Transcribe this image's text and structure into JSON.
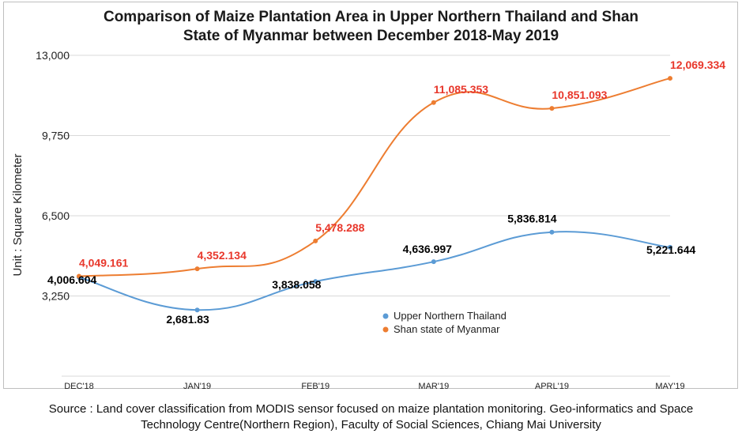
{
  "chart_data": {
    "type": "line",
    "title_lines": [
      "Comparison of Maize Plantation Area in Upper Northern Thailand and Shan",
      "State of Myanmar between December 2018-May 2019"
    ],
    "ylabel": "Unit : Square Kilometer",
    "xlabel": "",
    "categories": [
      "DEC'18",
      "JAN'19",
      "FEB'19",
      "MAR'19",
      "APRL'19",
      "MAY'19"
    ],
    "y_ticks": [
      "3,250",
      "6,500",
      "9,750",
      "13,000"
    ],
    "y_tick_values": [
      3250,
      6500,
      9750,
      13000
    ],
    "ylim": [
      0,
      13000
    ],
    "grid": "horizontal",
    "legend_position": "center-right",
    "series": [
      {
        "name": "Upper Northern Thailand",
        "color": "#5b9bd5",
        "label_color": "#000000",
        "values": [
          4006.604,
          2681.83,
          3838.058,
          4636.997,
          5836.814,
          5221.644
        ],
        "labels": [
          "4,006.604",
          "2,681.83",
          "3,838.058",
          "4,636.997",
          "5,836.814",
          "5,221.644"
        ]
      },
      {
        "name": "Shan state of Myanmar",
        "color": "#ed7d31",
        "label_color": "#e8372b",
        "values": [
          4049.161,
          4352.134,
          5478.288,
          11085.353,
          10851.093,
          12069.334
        ],
        "labels": [
          "4,049.161",
          "4,352.134",
          "5,478.288",
          "11,085.353",
          "10,851.093",
          "12,069.334"
        ]
      }
    ]
  },
  "source_lines": [
    "Source : Land cover classification from MODIS sensor focused on maize plantation monitoring. Geo-informatics and Space",
    "Technology Centre(Northern Region), Faculty of Social Sciences, Chiang Mai University"
  ]
}
